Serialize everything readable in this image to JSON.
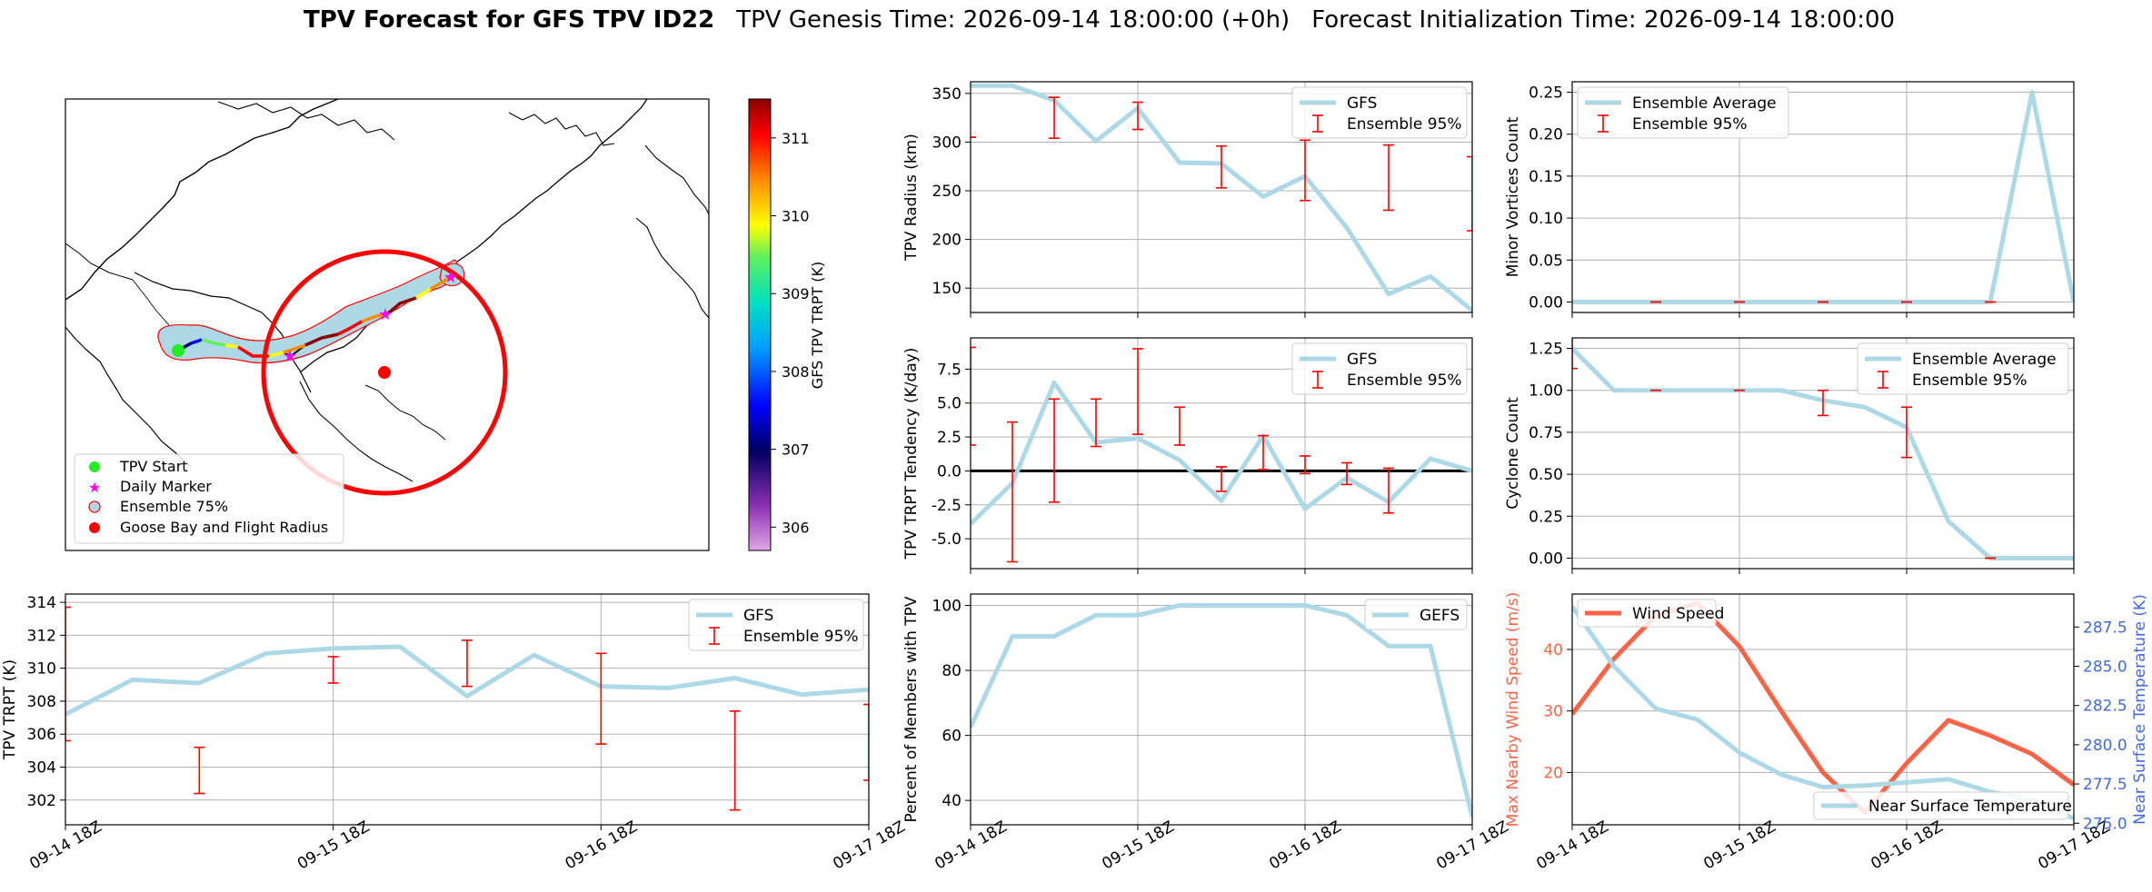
{
  "header": {
    "title_bold": "TPV Forecast for GFS TPV ID22",
    "genesis": "TPV Genesis Time: 2026-09-14 18:00:00 (+0h)",
    "init": "Forecast Initialization Time: 2026-09-14 18:00:00"
  },
  "colors": {
    "gfs_line": "#add8e6",
    "ensemble_err": "#ff0000",
    "wind": "#ff6347",
    "temperature_axis": "#4169e1",
    "track_high": "#8b0000"
  },
  "time_ticks": [
    "09-14 18Z",
    "09-15 18Z",
    "09-16 18Z",
    "09-17 18Z"
  ],
  "map": {
    "colorbar_label": "GFS TPV TRPT (K)",
    "colorbar_ticks": [
      "306",
      "307",
      "308",
      "309",
      "310",
      "311"
    ],
    "colorbar_range": [
      305.7,
      311.5
    ],
    "legend": [
      "TPV Start",
      "Daily Marker",
      "Ensemble 75%",
      "Goose Bay and Flight Radius"
    ]
  },
  "chart_data": [
    {
      "id": "radius",
      "type": "line",
      "ylabel": "TPV Radius (km)",
      "ylim": [
        125,
        362
      ],
      "yticks": [
        150,
        200,
        250,
        300,
        350
      ],
      "xlim": [
        0,
        72
      ],
      "grid": true,
      "legend": [
        "GFS",
        "Ensemble 95%"
      ],
      "legend_position": "top-right",
      "series": [
        {
          "name": "GFS",
          "x": [
            0,
            6,
            12,
            18,
            24,
            30,
            36,
            42,
            48,
            54,
            60,
            66,
            72
          ],
          "y": [
            358,
            358,
            343,
            301,
            335,
            279,
            278,
            244,
            265,
            212,
            144,
            162,
            127
          ]
        }
      ],
      "errorbars": [
        {
          "x": 0,
          "lo": 305,
          "hi": 305
        },
        {
          "x": 12,
          "lo": 304,
          "hi": 346
        },
        {
          "x": 24,
          "lo": 313,
          "hi": 341
        },
        {
          "x": 36,
          "lo": 253,
          "hi": 296
        },
        {
          "x": 48,
          "lo": 240,
          "hi": 302
        },
        {
          "x": 60,
          "lo": 230,
          "hi": 297
        },
        {
          "x": 72,
          "lo": 209,
          "hi": 285
        }
      ]
    },
    {
      "id": "tendency",
      "type": "line",
      "ylabel": "TPV TRPT Tendency (K/day)",
      "ylim": [
        -7.2,
        9.8
      ],
      "yticks": [
        -5.0,
        -2.5,
        0.0,
        2.5,
        5.0,
        7.5
      ],
      "xlim": [
        0,
        72
      ],
      "grid": true,
      "legend": [
        "GFS",
        "Ensemble 95%"
      ],
      "legend_position": "top-right",
      "zero_line": true,
      "series": [
        {
          "name": "GFS",
          "x": [
            0,
            6,
            12,
            18,
            24,
            30,
            36,
            42,
            48,
            54,
            60,
            66,
            72
          ],
          "y": [
            -3.9,
            -0.9,
            6.5,
            2.1,
            2.4,
            0.8,
            -2.2,
            2.6,
            -2.8,
            -0.5,
            -2.3,
            0.9,
            0.0
          ]
        }
      ],
      "errorbars": [
        {
          "x": 0,
          "lo": 1.9,
          "hi": 9.1
        },
        {
          "x": 6,
          "lo": -6.7,
          "hi": 3.6
        },
        {
          "x": 12,
          "lo": -2.3,
          "hi": 5.3
        },
        {
          "x": 18,
          "lo": 1.8,
          "hi": 5.3
        },
        {
          "x": 24,
          "lo": 2.7,
          "hi": 9.0
        },
        {
          "x": 30,
          "lo": 1.9,
          "hi": 4.7
        },
        {
          "x": 36,
          "lo": -1.5,
          "hi": 0.3
        },
        {
          "x": 42,
          "lo": 0.1,
          "hi": 2.6
        },
        {
          "x": 48,
          "lo": -0.2,
          "hi": 1.1
        },
        {
          "x": 54,
          "lo": -1.0,
          "hi": 0.6
        },
        {
          "x": 60,
          "lo": -3.1,
          "hi": 0.2
        }
      ]
    },
    {
      "id": "trpt",
      "type": "line",
      "ylabel": "TPV TRPT (K)",
      "ylim": [
        300.5,
        314.5
      ],
      "yticks": [
        302,
        304,
        306,
        308,
        310,
        312,
        314
      ],
      "xlim": [
        0,
        72
      ],
      "grid": true,
      "legend": [
        "GFS",
        "Ensemble 95%"
      ],
      "legend_position": "top-right",
      "series": [
        {
          "name": "GFS",
          "x": [
            0,
            6,
            12,
            18,
            24,
            30,
            36,
            42,
            48,
            54,
            60,
            66,
            72
          ],
          "y": [
            307.2,
            309.3,
            309.1,
            310.9,
            311.2,
            311.3,
            308.3,
            310.8,
            308.9,
            308.8,
            309.4,
            308.4,
            308.7
          ]
        }
      ],
      "errorbars": [
        {
          "x": 0,
          "lo": 305.6,
          "hi": 313.7
        },
        {
          "x": 12,
          "lo": 302.4,
          "hi": 305.2
        },
        {
          "x": 24,
          "lo": 309.1,
          "hi": 310.7
        },
        {
          "x": 36,
          "lo": 308.9,
          "hi": 311.7
        },
        {
          "x": 48,
          "lo": 305.4,
          "hi": 310.9
        },
        {
          "x": 60,
          "lo": 301.4,
          "hi": 307.4
        },
        {
          "x": 72,
          "lo": 303.2,
          "hi": 307.8
        }
      ]
    },
    {
      "id": "percent",
      "type": "line",
      "ylabel": "Percent of Members with TPV",
      "ylim": [
        32.5,
        103.5
      ],
      "yticks": [
        40,
        60,
        80,
        100
      ],
      "xlim": [
        0,
        72
      ],
      "grid": true,
      "legend": [
        "GEFS"
      ],
      "legend_position": "top-right",
      "series": [
        {
          "name": "GEFS",
          "x": [
            0,
            6,
            12,
            18,
            24,
            30,
            36,
            42,
            48,
            54,
            60,
            66,
            72
          ],
          "y": [
            62.5,
            90.5,
            90.5,
            97,
            97,
            100,
            100,
            100,
            100,
            97,
            87.5,
            87.5,
            35
          ]
        }
      ]
    },
    {
      "id": "minor",
      "type": "line",
      "ylabel": "Minor Vortices Count",
      "ylim": [
        -0.0125,
        0.2625
      ],
      "yticks": [
        0.0,
        0.05,
        0.1,
        0.15,
        0.2,
        0.25
      ],
      "xlim": [
        0,
        72
      ],
      "grid": true,
      "legend": [
        "Ensemble Average",
        "Ensemble 95%"
      ],
      "legend_position": "top-left",
      "series": [
        {
          "name": "Ensemble Average",
          "x": [
            0,
            6,
            12,
            18,
            24,
            30,
            36,
            42,
            48,
            54,
            60,
            66,
            72
          ],
          "y": [
            0,
            0,
            0,
            0,
            0,
            0,
            0,
            0,
            0,
            0,
            0,
            0.25,
            0
          ]
        }
      ],
      "errorbars": [
        {
          "x": 12,
          "lo": 0,
          "hi": 0
        },
        {
          "x": 24,
          "lo": 0,
          "hi": 0
        },
        {
          "x": 36,
          "lo": 0,
          "hi": 0
        },
        {
          "x": 48,
          "lo": 0,
          "hi": 0
        },
        {
          "x": 60,
          "lo": 0,
          "hi": 0
        }
      ]
    },
    {
      "id": "cyclone",
      "type": "line",
      "ylabel": "Cyclone Count",
      "ylim": [
        -0.0625,
        1.3125
      ],
      "yticks": [
        0.0,
        0.25,
        0.5,
        0.75,
        1.0,
        1.25
      ],
      "xlim": [
        0,
        72
      ],
      "grid": true,
      "legend": [
        "Ensemble Average",
        "Ensemble 95%"
      ],
      "legend_position": "top-right",
      "series": [
        {
          "name": "Ensemble Average",
          "x": [
            0,
            6,
            12,
            18,
            24,
            30,
            36,
            42,
            48,
            54,
            60,
            66,
            72
          ],
          "y": [
            1.25,
            1.0,
            1.0,
            1.0,
            1.0,
            1.0,
            0.94,
            0.9,
            0.78,
            0.22,
            0,
            0,
            0
          ]
        }
      ],
      "errorbars": [
        {
          "x": 0,
          "lo": 1.13,
          "hi": 1.37
        },
        {
          "x": 12,
          "lo": 1.0,
          "hi": 1.0
        },
        {
          "x": 24,
          "lo": 1.0,
          "hi": 1.0
        },
        {
          "x": 36,
          "lo": 0.85,
          "hi": 1.0
        },
        {
          "x": 48,
          "lo": 0.6,
          "hi": 0.9
        },
        {
          "x": 60,
          "lo": 0,
          "hi": 0
        }
      ]
    },
    {
      "id": "wind_temp",
      "type": "line",
      "ylabel": "Max Nearby Wind Speed (m/s)",
      "ylabel_right": "Near Surface Temperature (K)",
      "ylim": [
        11.5,
        49
      ],
      "yticks": [
        20,
        30,
        40
      ],
      "ylim_right": [
        274.9,
        289.6
      ],
      "yticks_right": [
        275.0,
        277.5,
        280.0,
        282.5,
        285.0,
        287.5
      ],
      "xlim": [
        0,
        72
      ],
      "grid": true,
      "legend": [
        "Wind Speed",
        "Near Surface Temperature"
      ],
      "series": [
        {
          "name": "Wind Speed",
          "axis": "left",
          "x": [
            0,
            6,
            12,
            18,
            24,
            30,
            36,
            42,
            48,
            54,
            60,
            66,
            72
          ],
          "y": [
            29.5,
            38.5,
            45.5,
            47.5,
            40.5,
            30.0,
            20.0,
            13.5,
            21.5,
            28.5,
            26.0,
            23.0,
            18.0
          ]
        },
        {
          "name": "Near Surface Temperature",
          "axis": "right",
          "x": [
            0,
            6,
            12,
            18,
            24,
            30,
            36,
            42,
            48,
            54,
            60,
            66,
            72
          ],
          "y": [
            288.8,
            285.0,
            282.3,
            281.6,
            279.5,
            278.1,
            277.3,
            277.4,
            277.6,
            277.8,
            277.0,
            276.5,
            275.3
          ]
        }
      ]
    }
  ]
}
